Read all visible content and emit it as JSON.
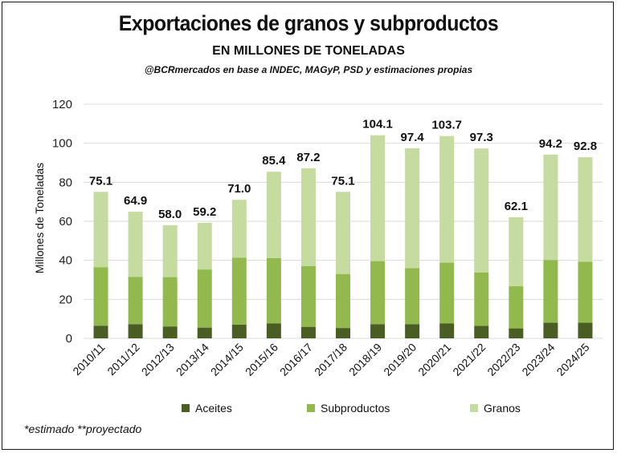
{
  "header": {
    "title": "Exportaciones de granos y subproductos",
    "subtitle": "EN MILLONES DE TONELADAS",
    "source": "@BCRmercados en base a INDEC, MAGyP, PSD y estimaciones propias"
  },
  "footnote": "*estimado **proyectado",
  "colors": {
    "aceites": "#4a5e23",
    "subproductos": "#92b94e",
    "granos": "#c5dba0"
  },
  "chart_data": {
    "type": "bar",
    "stacked": true,
    "title": "Exportaciones de granos y subproductos",
    "ylabel": "Millones de Toneladas",
    "xlabel": "",
    "ylim": [
      0,
      120
    ],
    "yticks": [
      0,
      20,
      40,
      60,
      80,
      100,
      120
    ],
    "grid": true,
    "legend": "bottom",
    "categories": [
      "2010/11",
      "2011/12",
      "2012/13",
      "2013/14",
      "2014/15",
      "2015/16",
      "2016/17",
      "2017/18",
      "2018/19",
      "2019/20",
      "2020/21",
      "2021/22",
      "2022/23",
      "2023/24",
      "2024/25"
    ],
    "series": [
      {
        "name": "Aceites",
        "values": [
          6.5,
          7.3,
          6.1,
          5.5,
          7.0,
          7.6,
          5.9,
          5.3,
          7.3,
          7.3,
          7.6,
          6.4,
          5.1,
          8.0,
          8.0
        ]
      },
      {
        "name": "Subproductos",
        "values": [
          30.0,
          24.2,
          25.3,
          29.8,
          34.3,
          33.6,
          31.2,
          27.7,
          32.3,
          28.7,
          31.2,
          27.3,
          21.6,
          32.2,
          31.3
        ]
      },
      {
        "name": "Granos",
        "values": [
          38.6,
          33.4,
          26.6,
          23.9,
          29.7,
          44.2,
          50.1,
          42.1,
          64.5,
          61.4,
          64.9,
          63.6,
          35.4,
          54.0,
          53.5
        ]
      }
    ],
    "totals": [
      "75.1",
      "64.9",
      "58.0",
      "59.2",
      "71.0",
      "85.4",
      "87.2",
      "75.1",
      "104.1",
      "97.4",
      "103.7",
      "97.3",
      "62.1",
      "94.2",
      "92.8"
    ]
  }
}
